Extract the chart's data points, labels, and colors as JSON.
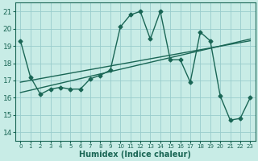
{
  "xlabel": "Humidex (Indice chaleur)",
  "bg_color": "#c8ece6",
  "grid_color": "#99cccc",
  "line_color": "#1a6655",
  "xlim": [
    -0.5,
    23.5
  ],
  "ylim": [
    13.5,
    21.5
  ],
  "xticks": [
    0,
    1,
    2,
    3,
    4,
    5,
    6,
    7,
    8,
    9,
    10,
    11,
    12,
    13,
    14,
    15,
    16,
    17,
    18,
    19,
    20,
    21,
    22,
    23
  ],
  "yticks": [
    14,
    15,
    16,
    17,
    18,
    19,
    20,
    21
  ],
  "series1_x": [
    0,
    1,
    2,
    3,
    4,
    5,
    6,
    7,
    8,
    9,
    10,
    11,
    12,
    13,
    14,
    15,
    16,
    17,
    18,
    19,
    20,
    21,
    22,
    23
  ],
  "series1_y": [
    19.3,
    17.2,
    16.2,
    16.5,
    16.6,
    16.5,
    16.5,
    17.1,
    17.3,
    17.6,
    20.1,
    20.8,
    21.0,
    19.4,
    21.0,
    18.2,
    18.2,
    16.9,
    19.8,
    19.3,
    16.1,
    14.7,
    14.8,
    16.0
  ],
  "trend1_x": [
    0,
    23
  ],
  "trend1_y": [
    16.3,
    19.4
  ],
  "trend2_x": [
    0,
    23
  ],
  "trend2_y": [
    16.9,
    19.3
  ],
  "marker": "D",
  "markersize": 2.5,
  "linewidth": 1.0,
  "xlabel_fontsize": 7,
  "tick_fontsize": 6.5
}
